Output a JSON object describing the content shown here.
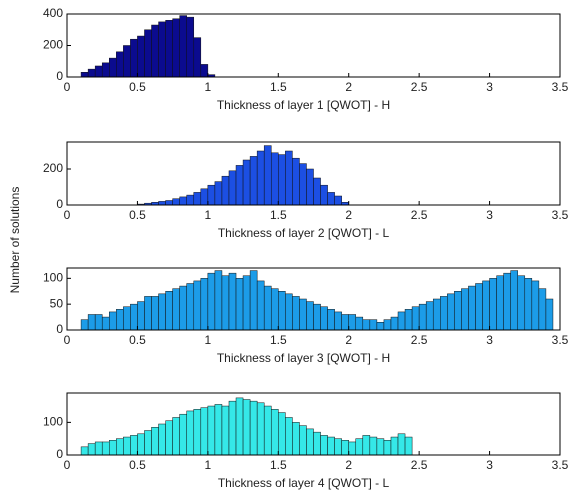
{
  "ylabel": "Number of solutions",
  "chart_data": [
    {
      "type": "histogram",
      "xlabel": "Thickness of layer 1 [QWOT] - H",
      "color": "#0b0b8f",
      "bins": [
        0.1,
        0.15,
        0.2,
        0.25,
        0.3,
        0.35,
        0.4,
        0.45,
        0.5,
        0.55,
        0.6,
        0.65,
        0.7,
        0.75,
        0.8,
        0.85,
        0.9,
        0.95,
        1,
        1.05
      ],
      "values": [
        30,
        50,
        70,
        90,
        120,
        160,
        200,
        240,
        260,
        300,
        330,
        350,
        360,
        370,
        390,
        380,
        250,
        80,
        15
      ],
      "xlim": [
        0,
        3.5
      ],
      "xticks": [
        0,
        0.5,
        1,
        1.5,
        2,
        2.5,
        3,
        3.5
      ],
      "ylim": [
        0,
        400
      ],
      "yticks": [
        0,
        200,
        400
      ]
    },
    {
      "type": "histogram",
      "xlabel": "Thickness of layer 2 [QWOT] - L",
      "color": "#1c4fe3",
      "bins": [
        0.5,
        0.55,
        0.6,
        0.65,
        0.7,
        0.75,
        0.8,
        0.85,
        0.9,
        0.95,
        1,
        1.05,
        1.1,
        1.15,
        1.2,
        1.25,
        1.3,
        1.35,
        1.4,
        1.45,
        1.5,
        1.55,
        1.6,
        1.65,
        1.7,
        1.75,
        1.8,
        1.85,
        1.9,
        1.95,
        2
      ],
      "values": [
        5,
        10,
        15,
        20,
        25,
        35,
        45,
        55,
        70,
        90,
        110,
        130,
        160,
        190,
        220,
        250,
        270,
        300,
        330,
        290,
        280,
        300,
        260,
        230,
        200,
        150,
        110,
        70,
        50,
        15
      ],
      "xlim": [
        0,
        3.5
      ],
      "xticks": [
        0,
        0.5,
        1,
        1.5,
        2,
        2.5,
        3,
        3.5
      ],
      "ylim": [
        0,
        350
      ],
      "yticks": [
        0,
        200
      ]
    },
    {
      "type": "histogram",
      "xlabel": "Thickness of layer 3 [QWOT] - H",
      "color": "#1c9ce8",
      "bins": [
        0.1,
        0.15,
        0.2,
        0.25,
        0.3,
        0.35,
        0.4,
        0.45,
        0.5,
        0.55,
        0.6,
        0.65,
        0.7,
        0.75,
        0.8,
        0.85,
        0.9,
        0.95,
        1,
        1.05,
        1.1,
        1.15,
        1.2,
        1.25,
        1.3,
        1.35,
        1.4,
        1.45,
        1.5,
        1.55,
        1.6,
        1.65,
        1.7,
        1.75,
        1.8,
        1.85,
        1.9,
        1.95,
        2,
        2.05,
        2.1,
        2.15,
        2.2,
        2.25,
        2.3,
        2.35,
        2.4,
        2.45,
        2.5,
        2.55,
        2.6,
        2.65,
        2.7,
        2.75,
        2.8,
        2.85,
        2.9,
        2.95,
        3,
        3.05,
        3.1,
        3.15,
        3.2,
        3.25,
        3.3,
        3.35,
        3.4,
        3.45
      ],
      "values": [
        20,
        30,
        30,
        25,
        35,
        40,
        45,
        50,
        55,
        65,
        65,
        70,
        75,
        80,
        85,
        90,
        95,
        100,
        110,
        115,
        105,
        110,
        100,
        105,
        115,
        95,
        85,
        80,
        75,
        70,
        65,
        60,
        55,
        50,
        45,
        40,
        35,
        30,
        30,
        25,
        20,
        20,
        15,
        20,
        25,
        35,
        40,
        45,
        50,
        55,
        60,
        65,
        70,
        75,
        80,
        85,
        90,
        95,
        100,
        105,
        110,
        115,
        105,
        100,
        95,
        80,
        60
      ],
      "xlim": [
        0,
        3.5
      ],
      "xticks": [
        0,
        0.5,
        1,
        1.5,
        2,
        2.5,
        3,
        3.5
      ],
      "ylim": [
        0,
        120
      ],
      "yticks": [
        0,
        50,
        100
      ]
    },
    {
      "type": "histogram",
      "xlabel": "Thickness of layer 4 [QWOT] - L",
      "color": "#35e8e8",
      "bins": [
        0.1,
        0.15,
        0.2,
        0.25,
        0.3,
        0.35,
        0.4,
        0.45,
        0.5,
        0.55,
        0.6,
        0.65,
        0.7,
        0.75,
        0.8,
        0.85,
        0.9,
        0.95,
        1,
        1.05,
        1.1,
        1.15,
        1.2,
        1.25,
        1.3,
        1.35,
        1.4,
        1.45,
        1.5,
        1.55,
        1.6,
        1.65,
        1.7,
        1.75,
        1.8,
        1.85,
        1.9,
        1.95,
        2,
        2.05,
        2.1,
        2.15,
        2.2,
        2.25,
        2.3,
        2.35,
        2.4,
        2.45
      ],
      "values": [
        25,
        35,
        40,
        40,
        45,
        50,
        55,
        60,
        65,
        75,
        85,
        95,
        105,
        115,
        125,
        135,
        140,
        145,
        150,
        155,
        150,
        165,
        175,
        170,
        165,
        160,
        150,
        140,
        130,
        115,
        100,
        90,
        80,
        70,
        60,
        55,
        50,
        45,
        40,
        50,
        60,
        55,
        50,
        45,
        55,
        65,
        55
      ],
      "xlim": [
        0,
        3.5
      ],
      "xticks": [
        0,
        0.5,
        1,
        1.5,
        2,
        2.5,
        3,
        3.5
      ],
      "ylim": [
        0,
        190
      ],
      "yticks": [
        0,
        100
      ]
    }
  ]
}
